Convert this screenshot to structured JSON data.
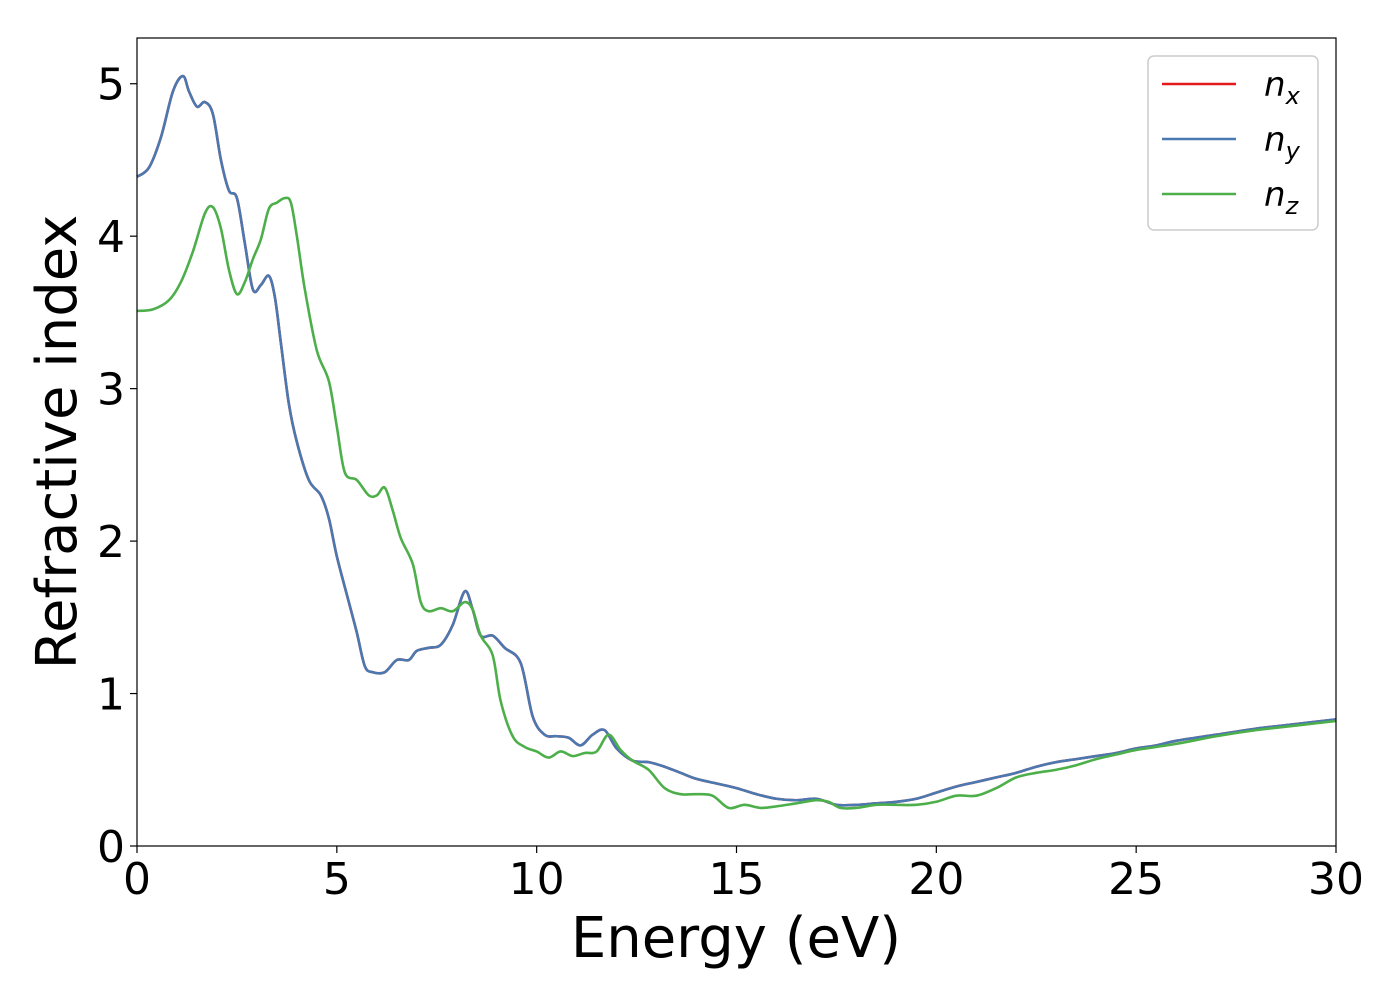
{
  "chart_data": {
    "type": "line",
    "title": "",
    "xlabel": "Energy (eV)",
    "ylabel": "Refractive index",
    "xlim": [
      0,
      30
    ],
    "ylim": [
      0,
      5.3
    ],
    "xticks": [
      0,
      5,
      10,
      15,
      20,
      25,
      30
    ],
    "yticks": [
      0,
      1,
      2,
      3,
      4,
      5
    ],
    "grid": false,
    "legend_position": "top-right",
    "series": [
      {
        "name": "n",
        "subscript": "x",
        "color": "#e41a1c",
        "x": [
          0,
          0.3,
          0.6,
          0.9,
          1.15,
          1.3,
          1.5,
          1.7,
          1.9,
          2.1,
          2.3,
          2.5,
          2.7,
          2.9,
          3.1,
          3.3,
          3.45,
          3.6,
          3.8,
          4.0,
          4.3,
          4.6,
          4.8,
          5.0,
          5.3,
          5.5,
          5.7,
          5.9,
          6.2,
          6.5,
          6.8,
          7.0,
          7.3,
          7.6,
          7.9,
          8.2,
          8.4,
          8.6,
          8.9,
          9.2,
          9.6,
          9.9,
          10.2,
          10.5,
          10.8,
          11.1,
          11.4,
          11.7,
          12.0,
          12.4,
          12.8,
          13.2,
          13.6,
          14.0,
          14.5,
          15.0,
          15.5,
          16.0,
          16.5,
          17.0,
          17.5,
          18.0,
          18.5,
          19.0,
          19.5,
          20.0,
          20.5,
          21.0,
          21.5,
          22.0,
          22.5,
          23.0,
          23.5,
          24.0,
          24.5,
          25.0,
          25.5,
          26.0,
          27.0,
          28.0,
          29.0,
          30.0
        ],
        "values": [
          4.39,
          4.45,
          4.65,
          4.95,
          5.05,
          4.95,
          4.85,
          4.88,
          4.8,
          4.5,
          4.3,
          4.25,
          3.95,
          3.65,
          3.68,
          3.74,
          3.6,
          3.3,
          2.9,
          2.65,
          2.4,
          2.3,
          2.15,
          1.9,
          1.6,
          1.4,
          1.18,
          1.14,
          1.14,
          1.22,
          1.22,
          1.28,
          1.3,
          1.32,
          1.45,
          1.67,
          1.55,
          1.38,
          1.38,
          1.3,
          1.2,
          0.85,
          0.73,
          0.72,
          0.71,
          0.66,
          0.73,
          0.76,
          0.64,
          0.56,
          0.55,
          0.52,
          0.48,
          0.44,
          0.41,
          0.38,
          0.34,
          0.31,
          0.3,
          0.31,
          0.27,
          0.27,
          0.28,
          0.29,
          0.31,
          0.35,
          0.39,
          0.42,
          0.45,
          0.48,
          0.52,
          0.55,
          0.57,
          0.59,
          0.61,
          0.64,
          0.66,
          0.69,
          0.73,
          0.77,
          0.8,
          0.83
        ]
      },
      {
        "name": "n",
        "subscript": "y",
        "color": "#4a78b0",
        "x": [
          0,
          0.3,
          0.6,
          0.9,
          1.15,
          1.3,
          1.5,
          1.7,
          1.9,
          2.1,
          2.3,
          2.5,
          2.7,
          2.9,
          3.1,
          3.3,
          3.45,
          3.6,
          3.8,
          4.0,
          4.3,
          4.6,
          4.8,
          5.0,
          5.3,
          5.5,
          5.7,
          5.9,
          6.2,
          6.5,
          6.8,
          7.0,
          7.3,
          7.6,
          7.9,
          8.2,
          8.4,
          8.6,
          8.9,
          9.2,
          9.6,
          9.9,
          10.2,
          10.5,
          10.8,
          11.1,
          11.4,
          11.7,
          12.0,
          12.4,
          12.8,
          13.2,
          13.6,
          14.0,
          14.5,
          15.0,
          15.5,
          16.0,
          16.5,
          17.0,
          17.5,
          18.0,
          18.5,
          19.0,
          19.5,
          20.0,
          20.5,
          21.0,
          21.5,
          22.0,
          22.5,
          23.0,
          23.5,
          24.0,
          24.5,
          25.0,
          25.5,
          26.0,
          27.0,
          28.0,
          29.0,
          30.0
        ],
        "values": [
          4.39,
          4.45,
          4.65,
          4.95,
          5.05,
          4.95,
          4.85,
          4.88,
          4.8,
          4.5,
          4.3,
          4.25,
          3.95,
          3.65,
          3.68,
          3.74,
          3.6,
          3.3,
          2.9,
          2.65,
          2.4,
          2.3,
          2.15,
          1.9,
          1.6,
          1.4,
          1.18,
          1.14,
          1.14,
          1.22,
          1.22,
          1.28,
          1.3,
          1.32,
          1.45,
          1.67,
          1.55,
          1.38,
          1.38,
          1.3,
          1.2,
          0.85,
          0.73,
          0.72,
          0.71,
          0.66,
          0.73,
          0.76,
          0.64,
          0.56,
          0.55,
          0.52,
          0.48,
          0.44,
          0.41,
          0.38,
          0.34,
          0.31,
          0.3,
          0.31,
          0.27,
          0.27,
          0.28,
          0.29,
          0.31,
          0.35,
          0.39,
          0.42,
          0.45,
          0.48,
          0.52,
          0.55,
          0.57,
          0.59,
          0.61,
          0.64,
          0.66,
          0.69,
          0.73,
          0.77,
          0.8,
          0.83
        ]
      },
      {
        "name": "n",
        "subscript": "z",
        "color": "#4daf4a",
        "x": [
          0,
          0.4,
          0.8,
          1.1,
          1.4,
          1.7,
          1.9,
          2.1,
          2.3,
          2.5,
          2.7,
          2.9,
          3.1,
          3.3,
          3.5,
          3.7,
          3.85,
          4.0,
          4.2,
          4.5,
          4.8,
          5.0,
          5.2,
          5.5,
          5.8,
          6.0,
          6.2,
          6.4,
          6.6,
          6.9,
          7.1,
          7.3,
          7.6,
          7.9,
          8.2,
          8.4,
          8.6,
          8.9,
          9.1,
          9.4,
          9.7,
          10.0,
          10.3,
          10.6,
          10.9,
          11.2,
          11.5,
          11.8,
          12.1,
          12.4,
          12.8,
          13.2,
          13.6,
          14.0,
          14.4,
          14.8,
          15.2,
          15.6,
          16.0,
          16.5,
          17.0,
          17.3,
          17.6,
          18.0,
          18.5,
          19.0,
          19.5,
          20.0,
          20.5,
          21.0,
          21.5,
          22.0,
          22.5,
          23.0,
          23.5,
          24.0,
          24.5,
          25.0,
          26.0,
          27.0,
          28.0,
          29.0,
          30.0
        ],
        "values": [
          3.51,
          3.52,
          3.58,
          3.7,
          3.9,
          4.15,
          4.19,
          4.05,
          3.78,
          3.62,
          3.7,
          3.85,
          3.98,
          4.18,
          4.22,
          4.25,
          4.22,
          4.0,
          3.65,
          3.25,
          3.05,
          2.75,
          2.45,
          2.4,
          2.3,
          2.3,
          2.35,
          2.2,
          2.02,
          1.85,
          1.6,
          1.54,
          1.56,
          1.54,
          1.6,
          1.55,
          1.38,
          1.25,
          0.95,
          0.72,
          0.65,
          0.62,
          0.58,
          0.62,
          0.59,
          0.61,
          0.62,
          0.73,
          0.63,
          0.56,
          0.5,
          0.38,
          0.34,
          0.34,
          0.33,
          0.25,
          0.27,
          0.25,
          0.26,
          0.28,
          0.3,
          0.29,
          0.25,
          0.25,
          0.27,
          0.27,
          0.27,
          0.29,
          0.33,
          0.33,
          0.38,
          0.45,
          0.48,
          0.5,
          0.53,
          0.57,
          0.6,
          0.63,
          0.67,
          0.72,
          0.76,
          0.79,
          0.82
        ]
      }
    ]
  }
}
